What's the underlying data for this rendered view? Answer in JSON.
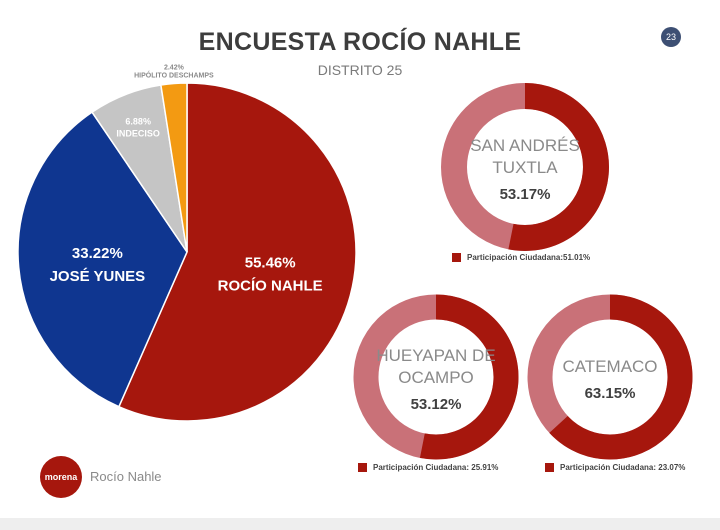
{
  "header": {
    "title": "ENCUESTA ROCÍO NAHLE",
    "subtitle": "DISTRITO 25",
    "page_number": "23"
  },
  "colors": {
    "nahle": "#a6170d",
    "yunes": "#0f3690",
    "indeciso": "#c5c5c5",
    "deschamps": "#f39a12",
    "donut_fill": "#a6170d",
    "donut_rest": "#c97178"
  },
  "chart_data": [
    {
      "type": "pie",
      "title": "",
      "slices": [
        {
          "label": "ROCÍO NAHLE",
          "value": 55.46,
          "value_label": "55.46%",
          "color": "#a6170d"
        },
        {
          "label": "JOSÉ YUNES",
          "value": 33.22,
          "value_label": "33.22%",
          "color": "#0f3690"
        },
        {
          "label": "INDECISO",
          "value": 6.88,
          "value_label": "6.88%",
          "color": "#c5c5c5"
        },
        {
          "label": "HIPÓLITO DESCHAMPS",
          "value": 2.42,
          "value_label": "2.42%",
          "color": "#f39a12"
        }
      ]
    },
    {
      "type": "pie",
      "subtype": "donut",
      "title_lines": [
        "SAN ANDRÉS",
        "TUXTLA"
      ],
      "value": 53.17,
      "value_label": "53.17%",
      "legend": "Participación Ciudadana:51.01%"
    },
    {
      "type": "pie",
      "subtype": "donut",
      "title_lines": [
        "HUEYAPAN DE",
        "OCAMPO"
      ],
      "value": 53.12,
      "value_label": "53.12%",
      "legend": "Participación Ciudadana: 25.91%"
    },
    {
      "type": "pie",
      "subtype": "donut",
      "title_lines": [
        "CATEMACO"
      ],
      "value": 63.15,
      "value_label": "63.15%",
      "legend": "Participación Ciudadana: 23.07%"
    }
  ],
  "footer": {
    "logo_text": "morena",
    "name": "Rocío Nahle"
  }
}
